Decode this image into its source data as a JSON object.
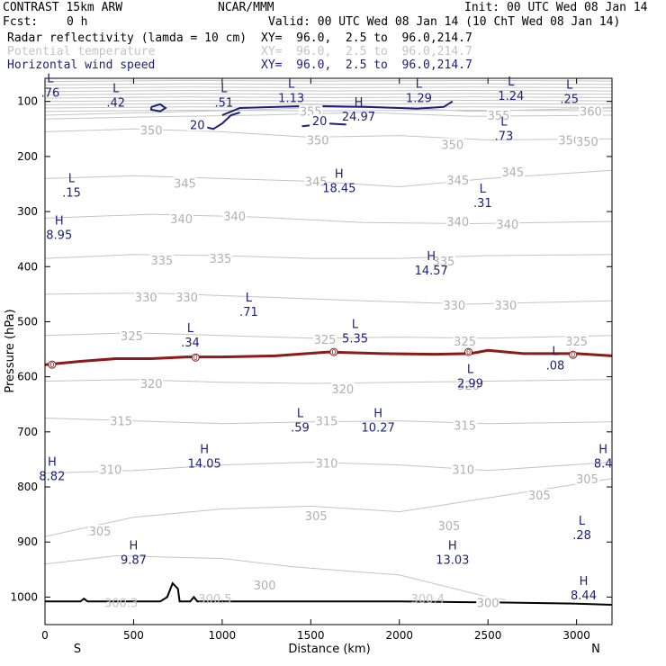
{
  "header": {
    "model": "CONTRAST 15km ARW",
    "center": "NCAR/MMM",
    "init": "Init: 00 UTC Wed 08 Jan 14",
    "fcst_label": "Fcst:",
    "fcst_value": "0 h",
    "valid": "Valid: 00 UTC Wed 08 Jan 14 (10 ChT Wed 08 Jan 14)"
  },
  "fields": [
    {
      "name": "Radar reflectivity (lamda = 10 cm)",
      "xy": "XY=  96.0,  2.5 to  96.0,214.7",
      "color": "#000000"
    },
    {
      "name": "Potential temperature",
      "xy": "XY=  96.0,  2.5 to  96.0,214.7",
      "color": "#c4c4c4"
    },
    {
      "name": "Horizontal wind speed",
      "xy": "XY=  96.0,  2.5 to  96.0,214.7",
      "color": "#1a1f7a"
    }
  ],
  "chart_data": {
    "type": "line",
    "xlabel": "Distance (km)",
    "ylabel": "Pressure (hPa)",
    "xlim": [
      0,
      3200
    ],
    "ylim": [
      1050,
      58
    ],
    "x_ticks": [
      "0",
      "500",
      "1000",
      "1500",
      "2000",
      "2500",
      "3000"
    ],
    "x_tick_values": [
      0,
      500,
      1000,
      1500,
      2000,
      2500,
      3000
    ],
    "y_ticks": [
      "100",
      "200",
      "300",
      "400",
      "500",
      "600",
      "700",
      "800",
      "900",
      "1000"
    ],
    "y_tick_values": [
      100,
      200,
      300,
      400,
      500,
      600,
      700,
      800,
      900,
      1000
    ],
    "endpoint_labels": {
      "left": "S",
      "right": "N"
    },
    "theta_contours": [
      {
        "label": "360",
        "points": [
          [
            0,
            125
          ],
          [
            600,
            120
          ],
          [
            1200,
            115
          ],
          [
            1800,
            108
          ],
          [
            2400,
            118
          ],
          [
            3200,
            112
          ]
        ],
        "label_positions": [
          [
            3080,
            118
          ]
        ]
      },
      {
        "label": "355",
        "points": [
          [
            0,
            132
          ],
          [
            600,
            128
          ],
          [
            1200,
            125
          ],
          [
            1800,
            120
          ],
          [
            2400,
            127
          ],
          [
            3200,
            125
          ]
        ],
        "label_positions": [
          [
            1500,
            118
          ],
          [
            2560,
            125
          ]
        ]
      },
      {
        "label": "350",
        "points": [
          [
            0,
            155
          ],
          [
            500,
            150
          ],
          [
            1000,
            155
          ],
          [
            1500,
            165
          ],
          [
            2000,
            162
          ],
          [
            2500,
            170
          ],
          [
            3200,
            168
          ]
        ],
        "label_positions": [
          [
            600,
            152
          ],
          [
            1540,
            170
          ],
          [
            2300,
            178
          ],
          [
            2960,
            170
          ],
          [
            3060,
            172
          ]
        ]
      },
      {
        "label": "345",
        "points": [
          [
            0,
            240
          ],
          [
            500,
            235
          ],
          [
            1000,
            240
          ],
          [
            1500,
            245
          ],
          [
            2000,
            255
          ],
          [
            2500,
            240
          ],
          [
            3200,
            225
          ]
        ],
        "label_positions": [
          [
            790,
            248
          ],
          [
            1530,
            245
          ],
          [
            2330,
            243
          ],
          [
            2640,
            228
          ]
        ]
      },
      {
        "label": "340",
        "points": [
          [
            0,
            312
          ],
          [
            600,
            305
          ],
          [
            1200,
            310
          ],
          [
            1800,
            320
          ],
          [
            2400,
            322
          ],
          [
            3200,
            318
          ]
        ],
        "label_positions": [
          [
            770,
            313
          ],
          [
            1070,
            308
          ],
          [
            2330,
            318
          ],
          [
            2610,
            323
          ]
        ]
      },
      {
        "label": "335",
        "points": [
          [
            0,
            385
          ],
          [
            500,
            378
          ],
          [
            1000,
            380
          ],
          [
            1500,
            385
          ],
          [
            2000,
            385
          ],
          [
            2500,
            380
          ],
          [
            3200,
            378
          ]
        ],
        "label_positions": [
          [
            660,
            388
          ],
          [
            990,
            385
          ],
          [
            2250,
            390
          ]
        ]
      },
      {
        "label": "330",
        "points": [
          [
            0,
            450
          ],
          [
            600,
            448
          ],
          [
            1200,
            455
          ],
          [
            1800,
            462
          ],
          [
            2400,
            468
          ],
          [
            3200,
            462
          ]
        ],
        "label_positions": [
          [
            570,
            455
          ],
          [
            800,
            455
          ],
          [
            2310,
            470
          ],
          [
            2600,
            470
          ]
        ]
      },
      {
        "label": "325",
        "points": [
          [
            0,
            525
          ],
          [
            500,
            520
          ],
          [
            1000,
            525
          ],
          [
            1500,
            530
          ],
          [
            2000,
            528
          ],
          [
            2500,
            530
          ],
          [
            3200,
            525
          ]
        ],
        "label_positions": [
          [
            490,
            525
          ],
          [
            1580,
            532
          ],
          [
            2370,
            535
          ],
          [
            3000,
            535
          ]
        ]
      },
      {
        "label": "320",
        "points": [
          [
            0,
            608
          ],
          [
            500,
            605
          ],
          [
            1000,
            610
          ],
          [
            1500,
            612
          ],
          [
            2000,
            610
          ],
          [
            2500,
            608
          ],
          [
            3200,
            605
          ]
        ],
        "label_positions": [
          [
            600,
            612
          ],
          [
            1680,
            622
          ],
          [
            2390,
            615
          ]
        ]
      },
      {
        "label": "315",
        "points": [
          [
            0,
            675
          ],
          [
            500,
            680
          ],
          [
            1000,
            685
          ],
          [
            1500,
            682
          ],
          [
            2000,
            680
          ],
          [
            2500,
            685
          ],
          [
            3200,
            682
          ]
        ],
        "label_positions": [
          [
            430,
            680
          ],
          [
            1590,
            680
          ],
          [
            2370,
            688
          ]
        ]
      },
      {
        "label": "310",
        "points": [
          [
            0,
            775
          ],
          [
            500,
            770
          ],
          [
            1000,
            760
          ],
          [
            1500,
            755
          ],
          [
            2000,
            760
          ],
          [
            2500,
            770
          ],
          [
            3200,
            755
          ]
        ],
        "label_positions": [
          [
            370,
            768
          ],
          [
            1590,
            757
          ],
          [
            2360,
            768
          ]
        ]
      },
      {
        "label": "305",
        "points": [
          [
            0,
            890
          ],
          [
            500,
            855
          ],
          [
            1000,
            840
          ],
          [
            1500,
            835
          ],
          [
            2000,
            845
          ],
          [
            2500,
            820
          ],
          [
            3200,
            785
          ]
        ],
        "label_positions": [
          [
            310,
            880
          ],
          [
            1530,
            852
          ],
          [
            2280,
            870
          ],
          [
            2790,
            815
          ],
          [
            3060,
            785
          ]
        ]
      },
      {
        "label": "300",
        "points": [
          [
            0,
            940
          ],
          [
            400,
            925
          ],
          [
            1000,
            930
          ],
          [
            1400,
            945
          ],
          [
            2000,
            960
          ],
          [
            2500,
            1000
          ],
          [
            2600,
            1005
          ]
        ],
        "label_positions": [
          [
            1240,
            978
          ],
          [
            2500,
            1010
          ]
        ]
      }
    ],
    "theta_surface_labels": [
      {
        "label": "300.3",
        "x": 430,
        "p": 1010
      },
      {
        "label": "300.5",
        "x": 960,
        "p": 1003
      },
      {
        "label": "300.4",
        "x": 2160,
        "p": 1003
      }
    ],
    "zero_reflectivity_line": {
      "label": "0",
      "color": "#8b1a1a",
      "points": [
        [
          0,
          578
        ],
        [
          200,
          572
        ],
        [
          400,
          567
        ],
        [
          600,
          567
        ],
        [
          800,
          564
        ],
        [
          1000,
          564
        ],
        [
          1300,
          562
        ],
        [
          1600,
          555
        ],
        [
          1900,
          558
        ],
        [
          2200,
          559
        ],
        [
          2400,
          558
        ],
        [
          2500,
          552
        ],
        [
          2700,
          558
        ],
        [
          3000,
          558
        ],
        [
          3200,
          562
        ]
      ],
      "label_positions": [
        [
          40,
          578
        ],
        [
          850,
          565
        ],
        [
          1630,
          555
        ],
        [
          2390,
          555
        ],
        [
          2980,
          560
        ]
      ]
    },
    "wind_speed_contours": [
      {
        "label": "20",
        "color": "#1a1f7a",
        "points": [
          [
            1000,
            125
          ],
          [
            1100,
            112
          ],
          [
            1500,
            108
          ],
          [
            1800,
            110
          ],
          [
            2000,
            112
          ],
          [
            2100,
            113
          ],
          [
            2250,
            110
          ],
          [
            2300,
            100
          ]
        ],
        "label_positions": [
          [
            860,
            142
          ],
          [
            1550,
            135
          ]
        ]
      },
      {
        "label": "",
        "color": "#1a1f7a",
        "points": [
          [
            850,
            142
          ],
          [
            950,
            150
          ],
          [
            1000,
            140
          ],
          [
            1050,
            125
          ],
          [
            1100,
            120
          ]
        ]
      },
      {
        "label": "",
        "color": "#1a1f7a",
        "points": [
          [
            600,
            110
          ],
          [
            650,
            105
          ],
          [
            680,
            112
          ],
          [
            650,
            118
          ],
          [
            600,
            115
          ],
          [
            600,
            110
          ]
        ]
      },
      {
        "label": "",
        "color": "#1a1f7a",
        "points": [
          [
            1450,
            145
          ],
          [
            1600,
            140
          ],
          [
            1700,
            142
          ]
        ]
      }
    ],
    "extrema": [
      {
        "type": "L",
        "value": ".76",
        "x": 30,
        "p": 72
      },
      {
        "type": "L",
        "value": ".42",
        "x": 400,
        "p": 90
      },
      {
        "type": "L",
        "value": ".51",
        "x": 1010,
        "p": 90
      },
      {
        "type": "L",
        "value": "1.13",
        "x": 1390,
        "p": 82
      },
      {
        "type": "H",
        "value": "24.97",
        "x": 1770,
        "p": 115
      },
      {
        "type": "L",
        "value": "1.29",
        "x": 2110,
        "p": 82
      },
      {
        "type": "L",
        "value": "1.24",
        "x": 2630,
        "p": 78
      },
      {
        "type": "L",
        "value": ".25",
        "x": 2960,
        "p": 83
      },
      {
        "type": "L",
        "value": ".73",
        "x": 2590,
        "p": 150
      },
      {
        "type": "L",
        "value": ".15",
        "x": 150,
        "p": 253
      },
      {
        "type": "H",
        "value": "18.45",
        "x": 1660,
        "p": 245
      },
      {
        "type": "L",
        "value": ".31",
        "x": 2470,
        "p": 272
      },
      {
        "type": "H",
        "value": "8.95",
        "x": 80,
        "p": 330
      },
      {
        "type": "H",
        "value": "14.57",
        "x": 2180,
        "p": 395
      },
      {
        "type": "L",
        "value": ".71",
        "x": 1150,
        "p": 470
      },
      {
        "type": "L",
        "value": ".34",
        "x": 820,
        "p": 525
      },
      {
        "type": "L",
        "value": "5.35",
        "x": 1750,
        "p": 518
      },
      {
        "type": "L",
        "value": ".08",
        "x": 2880,
        "p": 567
      },
      {
        "type": "L",
        "value": "2.99",
        "x": 2400,
        "p": 600
      },
      {
        "type": "L",
        "value": ".59",
        "x": 1440,
        "p": 680
      },
      {
        "type": "H",
        "value": "10.27",
        "x": 1880,
        "p": 680
      },
      {
        "type": "H",
        "value": "14.05",
        "x": 900,
        "p": 745
      },
      {
        "type": "H",
        "value": "8.4",
        "x": 3150,
        "p": 745
      },
      {
        "type": "H",
        "value": "8.82",
        "x": 40,
        "p": 768
      },
      {
        "type": "L",
        "value": ".28",
        "x": 3030,
        "p": 875
      },
      {
        "type": "H",
        "value": "9.87",
        "x": 500,
        "p": 920
      },
      {
        "type": "H",
        "value": "13.03",
        "x": 2300,
        "p": 920
      },
      {
        "type": "H",
        "value": "8.44",
        "x": 3040,
        "p": 985
      }
    ],
    "terrain": [
      [
        0,
        1008
      ],
      [
        200,
        1008
      ],
      [
        220,
        1003
      ],
      [
        240,
        1008
      ],
      [
        650,
        1008
      ],
      [
        690,
        1000
      ],
      [
        720,
        975
      ],
      [
        750,
        985
      ],
      [
        760,
        1008
      ],
      [
        820,
        1008
      ],
      [
        840,
        1000
      ],
      [
        860,
        1008
      ],
      [
        1400,
        1008
      ],
      [
        2000,
        1008
      ],
      [
        2600,
        1010
      ],
      [
        3000,
        1012
      ],
      [
        3200,
        1014
      ]
    ]
  }
}
